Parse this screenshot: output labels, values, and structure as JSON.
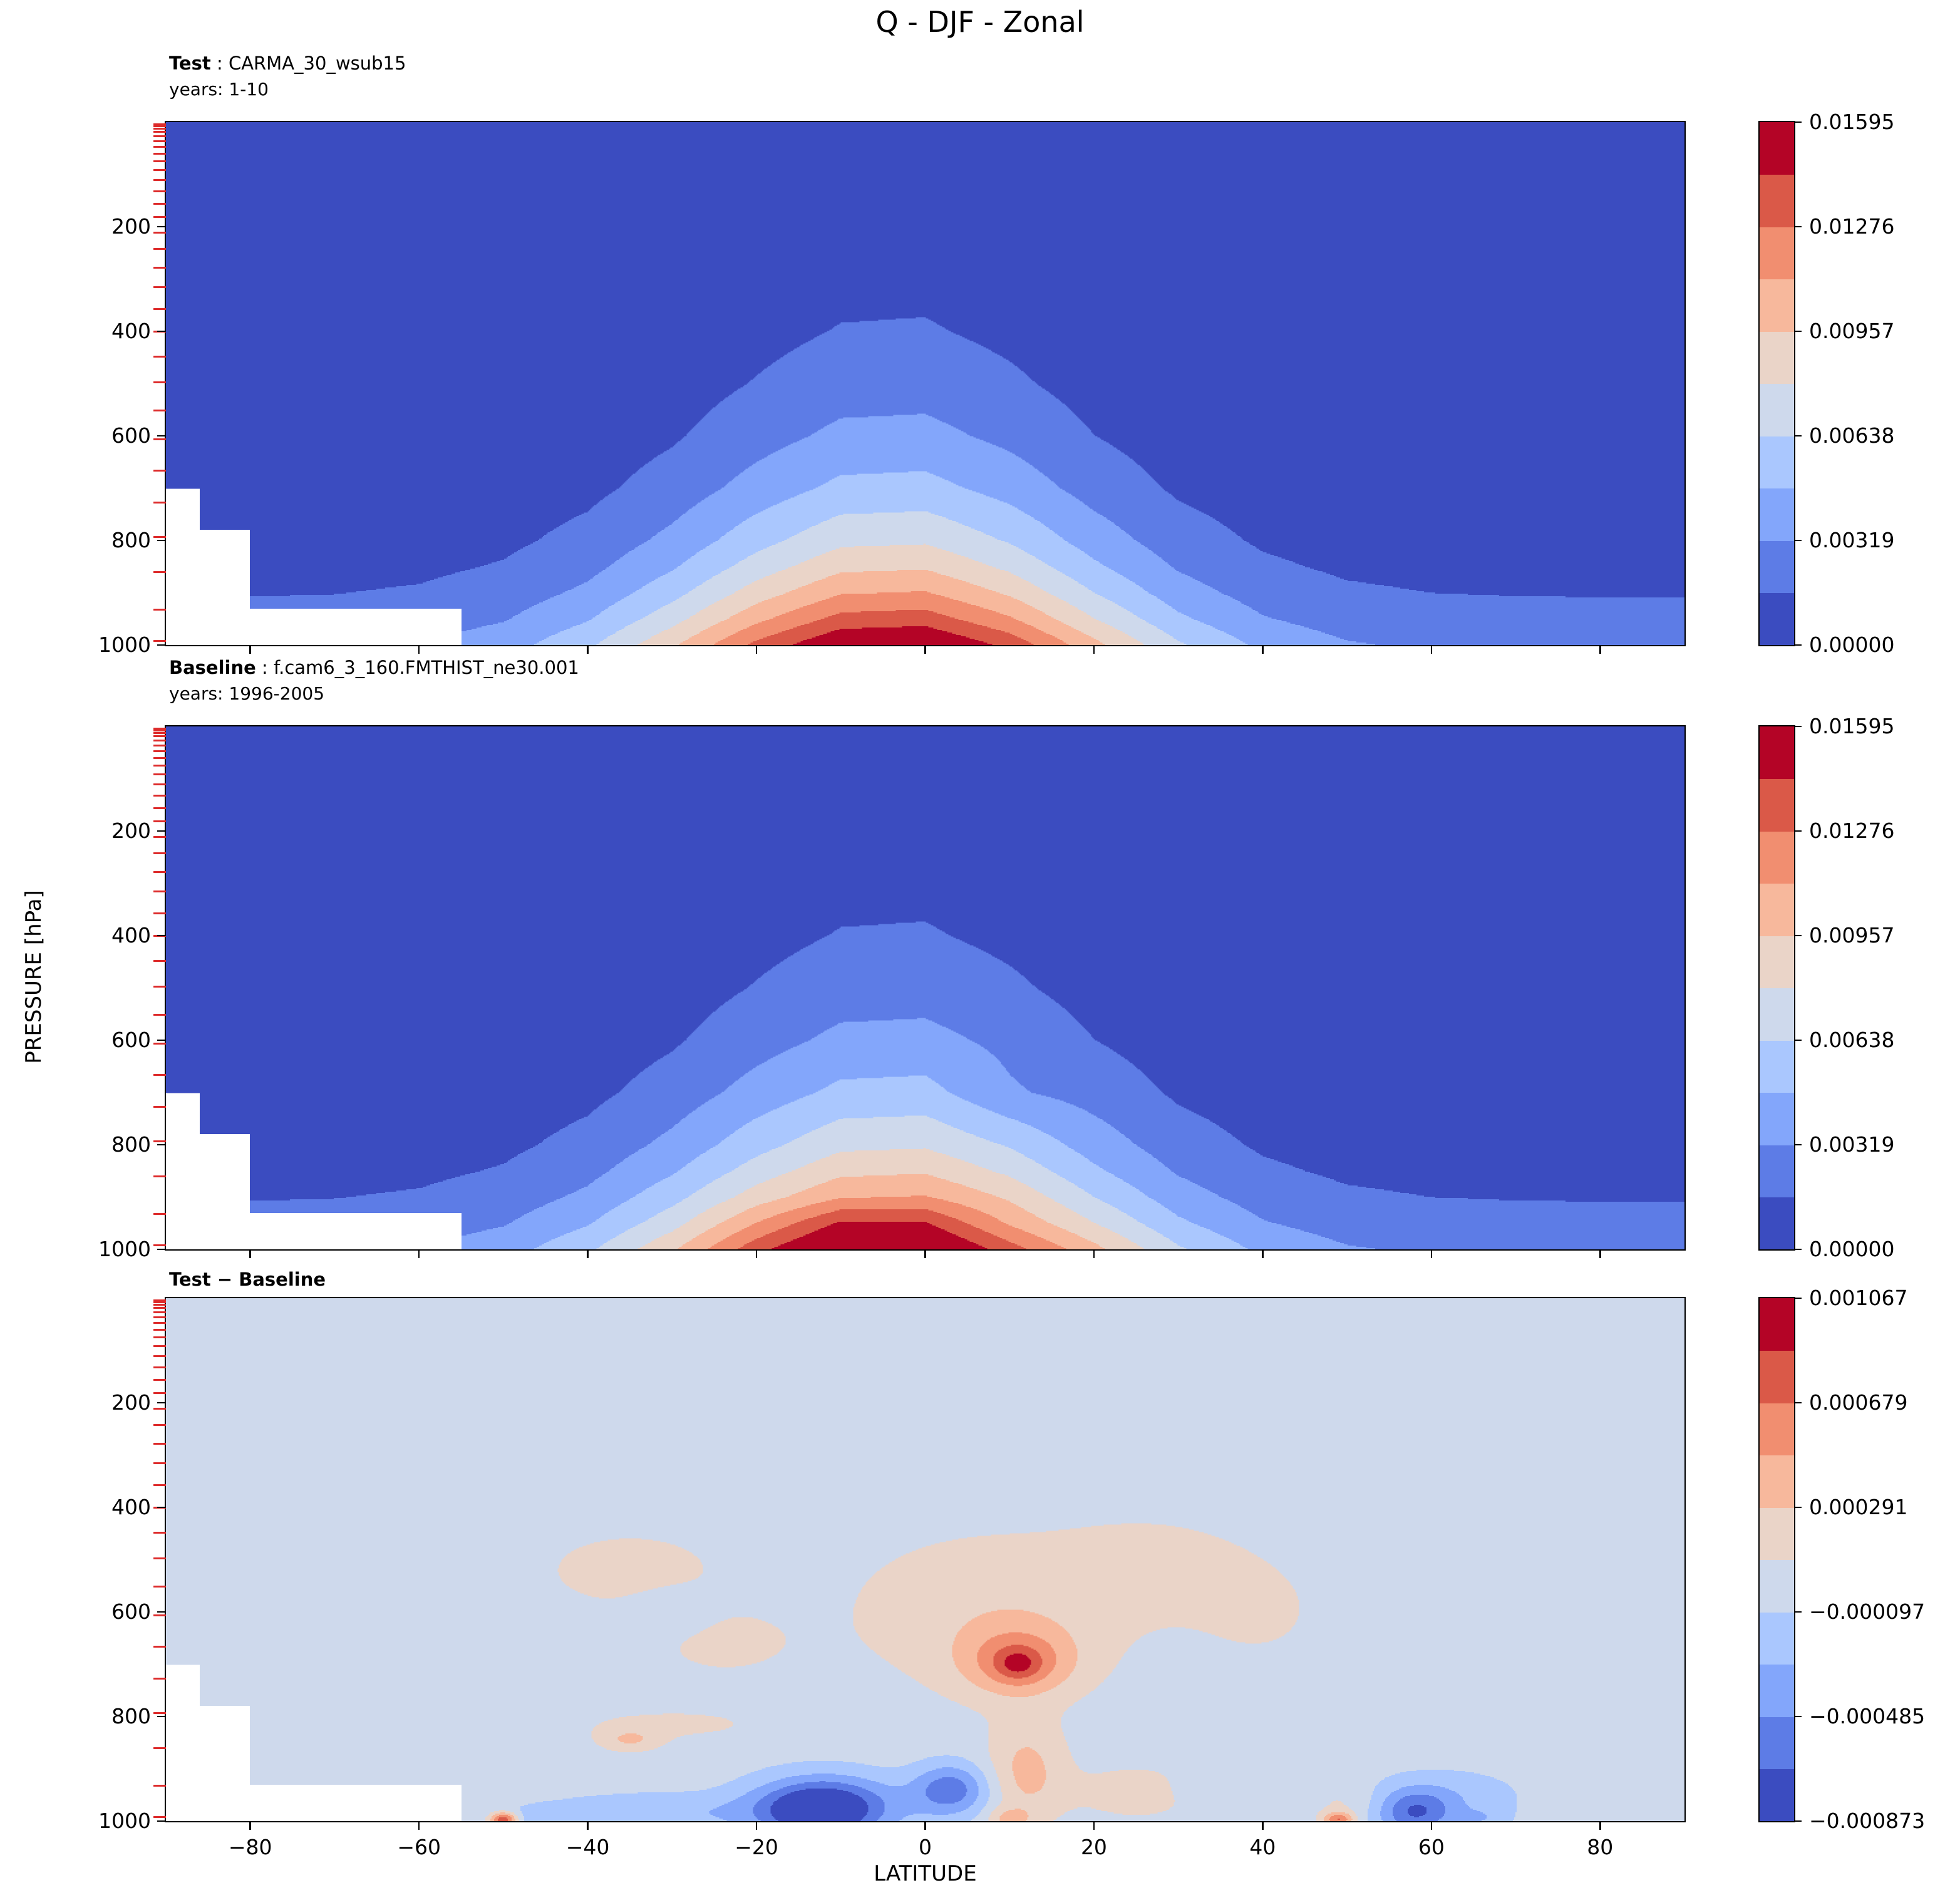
{
  "chart_data": {
    "type": "heatmap",
    "title": "Q - DJF - Zonal",
    "xlabel": "LATITUDE",
    "ylabel": "PRESSURE [hPa]",
    "x_range": [
      -90,
      90
    ],
    "y_range": [
      0,
      1000
    ],
    "x_ticks": [
      -80,
      -60,
      -40,
      -20,
      0,
      20,
      40,
      60,
      80
    ],
    "x_tick_labels": [
      "−80",
      "−60",
      "−40",
      "−20",
      "0",
      "20",
      "40",
      "60",
      "80"
    ],
    "y_ticks": [
      200,
      400,
      600,
      800,
      1000
    ],
    "y_tick_labels": [
      "200",
      "400",
      "600",
      "800",
      "1000"
    ],
    "model_level_pressures": [
      4,
      8,
      13,
      19,
      27,
      36,
      47,
      60,
      75,
      92,
      111,
      132,
      156,
      182,
      211,
      243,
      278,
      316,
      357,
      401,
      448,
      498,
      551,
      607,
      666,
      728,
      793,
      861,
      932,
      992
    ],
    "colormap": [
      "#3b4cc0",
      "#5d7ce6",
      "#83a6fb",
      "#aac7fe",
      "#ced9ec",
      "#ead4c8",
      "#f7b89c",
      "#f18e70",
      "#da5948",
      "#b40426"
    ],
    "mask_color": "#ffffff",
    "axis_color": "#000000",
    "model_level_tick_color": "#dd2b2b",
    "colorbar_main": {
      "boundaries": [
        0,
        0.001595,
        0.00319,
        0.004785,
        0.00638,
        0.007975,
        0.00957,
        0.011165,
        0.01276,
        0.014355,
        0.01595
      ],
      "tick_labels": [
        "0.01595",
        "0.01276",
        "0.00957",
        "0.00638",
        "0.00319",
        "0.00000"
      ]
    },
    "colorbar_diff": {
      "boundaries": [
        -0.000873,
        -0.000679,
        -0.000485,
        -0.000291,
        -9.7e-05,
        9.7e-05,
        0.000291,
        0.000485,
        0.000679,
        0.000873,
        0.001067
      ],
      "tick_labels": [
        "0.001067",
        "0.000679",
        "0.000291",
        "−0.000097",
        "−0.000485",
        "−0.000873"
      ]
    },
    "mask_steps": [
      {
        "lat_max": -86,
        "p_min": 700
      },
      {
        "lat_max": -80,
        "p_min": 780
      },
      {
        "lat_max": -55,
        "p_min": 930
      }
    ],
    "panels": [
      {
        "id": "test",
        "header_bold": "Test",
        "header_rest": " : CARMA_30_wsub15",
        "years_label": "years: 1-10",
        "lats": [
          -90,
          -80,
          -70,
          -60,
          -50,
          -40,
          -30,
          -20,
          -10,
          0,
          10,
          20,
          30,
          40,
          50,
          60,
          70,
          80,
          90
        ],
        "pressures": [
          0,
          100,
          200,
          300,
          400,
          500,
          600,
          700,
          800,
          850,
          900,
          950,
          1000
        ],
        "values": [
          [
            1e-05,
            1e-05,
            2e-05,
            4e-05,
            7e-05,
            0.00012,
            0.00023,
            0.00043,
            0.0008,
            0.0011,
            0.0015,
            0.00205,
            0.0028
          ],
          [
            1e-05,
            1e-05,
            2e-05,
            4e-05,
            7e-05,
            0.00012,
            0.00023,
            0.00043,
            0.00081,
            0.0011,
            0.00151,
            0.00206,
            0.00282
          ],
          [
            1e-05,
            1e-05,
            2e-05,
            4e-05,
            7e-05,
            0.00013,
            0.00024,
            0.00044,
            0.00084,
            0.00114,
            0.00156,
            0.00213,
            0.00291
          ],
          [
            1e-05,
            1e-05,
            2e-05,
            4e-05,
            8e-05,
            0.00015,
            0.00028,
            0.00051,
            0.00095,
            0.00128,
            0.00175,
            0.00237,
            0.00322
          ],
          [
            1e-05,
            2e-05,
            4e-05,
            7e-05,
            0.00012,
            0.00022,
            0.00039,
            0.00071,
            0.00127,
            0.00171,
            0.00229,
            0.00307,
            0.00411
          ],
          [
            3e-05,
            5e-05,
            8e-05,
            0.00014,
            0.00024,
            0.00041,
            0.00071,
            0.00121,
            0.00207,
            0.00271,
            0.00354,
            0.00464,
            0.00607
          ],
          [
            8e-05,
            0.00013,
            0.00021,
            0.00034,
            0.00055,
            0.00088,
            0.00141,
            0.00226,
            0.00362,
            0.00459,
            0.00581,
            0.00735,
            0.00931
          ],
          [
            0.00021,
            0.00032,
            0.00049,
            0.00074,
            0.00111,
            0.00168,
            0.00254,
            0.00383,
            0.00578,
            0.0071,
            0.00873,
            0.01073,
            0.01318
          ],
          [
            0.00037,
            0.00054,
            0.00079,
            0.00115,
            0.00168,
            0.00245,
            0.00357,
            0.00519,
            0.00756,
            0.00913,
            0.01103,
            0.01331,
            0.01606
          ],
          [
            0.00039,
            0.00057,
            0.00082,
            0.0012,
            0.00174,
            0.00253,
            0.00367,
            0.00533,
            0.00774,
            0.00935,
            0.01127,
            0.01358,
            0.01636
          ],
          [
            0.00025,
            0.00037,
            0.00056,
            0.00083,
            0.00124,
            0.00186,
            0.00278,
            0.00416,
            0.00621,
            0.0076,
            0.0093,
            0.01137,
            0.0139
          ],
          [
            0.0001,
            0.00016,
            0.00026,
            0.00041,
            0.00064,
            0.00102,
            0.00161,
            0.00255,
            0.00403,
            0.00507,
            0.00637,
            0.00801,
            0.01008
          ],
          [
            3e-05,
            6e-05,
            0.0001,
            0.00017,
            0.00028,
            0.00048,
            0.00081,
            0.00137,
            0.00232,
            0.00301,
            0.00392,
            0.00509,
            0.00662
          ],
          [
            1e-05,
            2e-05,
            4e-05,
            8e-05,
            0.00014,
            0.00024,
            0.00044,
            0.00078,
            0.00139,
            0.00185,
            0.00247,
            0.0033,
            0.00441
          ],
          [
            1e-05,
            1e-05,
            3e-05,
            5e-05,
            9e-05,
            0.00016,
            0.00029,
            0.00054,
            0.00099,
            0.00134,
            0.00182,
            0.00246,
            0.00334
          ],
          [
            1e-05,
            1e-05,
            2e-05,
            4e-05,
            7e-05,
            0.00013,
            0.00025,
            0.00045,
            0.00086,
            0.00117,
            0.00159,
            0.00216,
            0.00295
          ],
          [
            1e-05,
            1e-05,
            2e-05,
            4e-05,
            7e-05,
            0.00012,
            0.00023,
            0.00043,
            0.00081,
            0.00111,
            0.00152,
            0.00207,
            0.00283
          ],
          [
            1e-05,
            1e-05,
            2e-05,
            4e-05,
            7e-05,
            0.00012,
            0.00023,
            0.00043,
            0.0008,
            0.0011,
            0.0015,
            0.00205,
            0.0028
          ],
          [
            1e-05,
            1e-05,
            2e-05,
            4e-05,
            7e-05,
            0.00012,
            0.00023,
            0.00043,
            0.0008,
            0.0011,
            0.0015,
            0.00205,
            0.0028
          ]
        ]
      },
      {
        "id": "baseline",
        "header_bold": "Baseline",
        "header_rest": " : f.cam6_3_160.FMTHIST_ne30.001",
        "years_label": "years: 1996-2005",
        "lats": [
          -90,
          -80,
          -70,
          -60,
          -50,
          -40,
          -30,
          -20,
          -10,
          0,
          10,
          20,
          30,
          40,
          50,
          60,
          70,
          80,
          90
        ],
        "pressures": [
          0,
          100,
          200,
          300,
          400,
          500,
          600,
          700,
          800,
          850,
          900,
          950,
          1000
        ],
        "values": [
          [
            1e-05,
            1e-05,
            2e-05,
            4e-05,
            7e-05,
            0.00012,
            0.00023,
            0.00043,
            0.0008,
            0.0011,
            0.0015,
            0.00205,
            0.0028
          ],
          [
            1e-05,
            1e-05,
            2e-05,
            4e-05,
            7e-05,
            0.00012,
            0.00023,
            0.00043,
            0.00081,
            0.0011,
            0.00151,
            0.00206,
            0.00282
          ],
          [
            1e-05,
            1e-05,
            2e-05,
            4e-05,
            7e-05,
            0.00013,
            0.00024,
            0.00044,
            0.00084,
            0.00114,
            0.00156,
            0.00213,
            0.00291
          ],
          [
            1e-05,
            1e-05,
            2e-05,
            4e-05,
            8e-05,
            0.00015,
            0.00028,
            0.00051,
            0.00095,
            0.00128,
            0.00175,
            0.00237,
            0.00322
          ],
          [
            1e-05,
            2e-05,
            4e-05,
            7e-05,
            0.00012,
            0.00022,
            0.00039,
            0.00071,
            0.00127,
            0.00171,
            0.00229,
            0.00307,
            0.00411
          ],
          [
            3e-05,
            5e-05,
            8e-05,
            0.00014,
            0.00024,
            0.00041,
            0.00071,
            0.00121,
            0.00207,
            0.00271,
            0.00354,
            0.00464,
            0.00607
          ],
          [
            8e-05,
            0.00013,
            0.00021,
            0.00034,
            0.00055,
            0.00088,
            0.00141,
            0.00226,
            0.00362,
            0.00459,
            0.00581,
            0.00735,
            0.00931
          ],
          [
            0.00021,
            0.00032,
            0.00049,
            0.00074,
            0.00111,
            0.00168,
            0.00254,
            0.00383,
            0.00578,
            0.0071,
            0.00873,
            0.0112,
            0.0138
          ],
          [
            0.00037,
            0.00054,
            0.00079,
            0.00115,
            0.00168,
            0.00245,
            0.00357,
            0.00519,
            0.00756,
            0.00913,
            0.01103,
            0.0146,
            0.0172
          ],
          [
            0.00039,
            0.00057,
            0.00082,
            0.0012,
            0.00174,
            0.00253,
            0.00367,
            0.00533,
            0.00774,
            0.00935,
            0.01127,
            0.0145,
            0.017
          ],
          [
            0.00025,
            0.00037,
            0.00056,
            0.00083,
            0.00124,
            0.00186,
            0.00278,
            0.00341,
            0.00621,
            0.0076,
            0.0093,
            0.01095,
            0.0135
          ],
          [
            0.0001,
            0.00016,
            0.00026,
            0.00041,
            0.00064,
            0.00102,
            0.00161,
            0.00255,
            0.00403,
            0.00507,
            0.00637,
            0.00801,
            0.01008
          ],
          [
            3e-05,
            6e-05,
            0.0001,
            0.00017,
            0.00028,
            0.00048,
            0.00081,
            0.00137,
            0.00232,
            0.00301,
            0.00392,
            0.00509,
            0.00662
          ],
          [
            1e-05,
            2e-05,
            4e-05,
            8e-05,
            0.00014,
            0.00024,
            0.00044,
            0.00078,
            0.00139,
            0.00185,
            0.00247,
            0.0033,
            0.00441
          ],
          [
            1e-05,
            1e-05,
            3e-05,
            5e-05,
            9e-05,
            0.00016,
            0.00029,
            0.00054,
            0.00099,
            0.00134,
            0.00182,
            0.00246,
            0.00334
          ],
          [
            1e-05,
            1e-05,
            2e-05,
            4e-05,
            7e-05,
            0.00013,
            0.00025,
            0.00045,
            0.00086,
            0.00117,
            0.00159,
            0.00216,
            0.00295
          ],
          [
            1e-05,
            1e-05,
            2e-05,
            4e-05,
            7e-05,
            0.00012,
            0.00023,
            0.00043,
            0.00081,
            0.00111,
            0.00152,
            0.00207,
            0.00283
          ],
          [
            1e-05,
            1e-05,
            2e-05,
            4e-05,
            7e-05,
            0.00012,
            0.00023,
            0.00043,
            0.0008,
            0.0011,
            0.0015,
            0.00205,
            0.0028
          ],
          [
            1e-05,
            1e-05,
            2e-05,
            4e-05,
            7e-05,
            0.00012,
            0.00023,
            0.00043,
            0.0008,
            0.0011,
            0.0015,
            0.00205,
            0.0028
          ]
        ]
      },
      {
        "id": "diff",
        "header_bold": "Test − Baseline",
        "header_rest": "",
        "years_label": "",
        "background_value": 0,
        "anomaly_features": [
          {
            "lat": -35,
            "p": 520,
            "peak": 0.00016,
            "lat_sigma": 12,
            "p_sigma": 85
          },
          {
            "lat": -24,
            "p": 660,
            "peak": 0.00014,
            "lat_sigma": 9,
            "p_sigma": 70
          },
          {
            "lat": -30,
            "p": 600,
            "peak": -0.00012,
            "lat_sigma": 5,
            "p_sigma": 45
          },
          {
            "lat": -30,
            "p": 815,
            "peak": 0.00013,
            "lat_sigma": 13,
            "p_sigma": 35
          },
          {
            "lat": -35,
            "p": 845,
            "peak": 0.00028,
            "lat_sigma": 3.5,
            "p_sigma": 22
          },
          {
            "lat": 8,
            "p": 600,
            "peak": 0.00024,
            "lat_sigma": 17,
            "p_sigma": 150
          },
          {
            "lat": 27,
            "p": 500,
            "peak": 0.00013,
            "lat_sigma": 11,
            "p_sigma": 90
          },
          {
            "lat": 40,
            "p": 600,
            "peak": 0.00011,
            "lat_sigma": 10,
            "p_sigma": 130
          },
          {
            "lat": 11,
            "p": 695,
            "peak": 0.00055,
            "lat_sigma": 6.5,
            "p_sigma": 65
          },
          {
            "lat": 11,
            "p": 700,
            "peak": 0.0003,
            "lat_sigma": 2.5,
            "p_sigma": 28
          },
          {
            "lat": 12,
            "p": 905,
            "peak": 0.00035,
            "lat_sigma": 4.5,
            "p_sigma": 95
          },
          {
            "lat": 10,
            "p": 995,
            "peak": 0.0003,
            "lat_sigma": 2.5,
            "p_sigma": 20
          },
          {
            "lat": -12,
            "p": 975,
            "peak": -0.00095,
            "lat_sigma": 8.5,
            "p_sigma": 60
          },
          {
            "lat": -13,
            "p": 985,
            "peak": -0.0003,
            "lat_sigma": 4,
            "p_sigma": 35
          },
          {
            "lat": 3,
            "p": 940,
            "peak": -0.0006,
            "lat_sigma": 4.5,
            "p_sigma": 50
          },
          {
            "lat": -32,
            "p": 985,
            "peak": -0.00028,
            "lat_sigma": 13,
            "p_sigma": 38
          },
          {
            "lat": -45,
            "p": 995,
            "peak": -0.00014,
            "lat_sigma": 6,
            "p_sigma": 25
          },
          {
            "lat": 25,
            "p": 945,
            "peak": 0.00018,
            "lat_sigma": 8,
            "p_sigma": 55
          },
          {
            "lat": 33,
            "p": 935,
            "peak": -0.00013,
            "lat_sigma": 3.5,
            "p_sigma": 30
          },
          {
            "lat": 58,
            "p": 985,
            "peak": -0.00058,
            "lat_sigma": 4.5,
            "p_sigma": 45
          },
          {
            "lat": 62,
            "p": 955,
            "peak": -0.00022,
            "lat_sigma": 9,
            "p_sigma": 55
          },
          {
            "lat": 50,
            "p": 965,
            "peak": 0.00014,
            "lat_sigma": 4.5,
            "p_sigma": 35
          },
          {
            "lat": 49,
            "p": 997,
            "peak": 0.00065,
            "lat_sigma": 1.8,
            "p_sigma": 14
          },
          {
            "lat": -50,
            "p": 997,
            "peak": 0.0009,
            "lat_sigma": 1.6,
            "p_sigma": 14
          },
          {
            "lat": 66,
            "p": 995,
            "peak": -0.00018,
            "lat_sigma": 3,
            "p_sigma": 20
          }
        ]
      }
    ]
  }
}
